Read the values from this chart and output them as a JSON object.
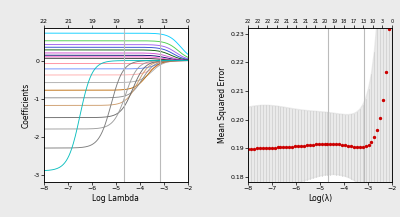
{
  "left_xlim": [
    -8,
    -2
  ],
  "left_ylim": [
    -3.2,
    0.85
  ],
  "left_xlabel": "Log Lambda",
  "left_ylabel": "Coefficients",
  "left_top_ticks": [
    "22",
    "21",
    "19",
    "19",
    "18",
    "13",
    "0"
  ],
  "left_top_tick_pos": [
    -8,
    -7,
    -6,
    -5,
    -4,
    -3,
    -2
  ],
  "left_vlines": [
    -4.65,
    -3.15
  ],
  "right_xlim": [
    -8,
    -2
  ],
  "right_ylim": [
    0.178,
    0.232
  ],
  "right_xlabel": "Log(λ)",
  "right_ylabel": "Mean Squared Error",
  "right_top_ticks": [
    "22",
    "22",
    "22",
    "22",
    "21",
    "21",
    "21",
    "21",
    "20",
    "19",
    "18",
    "17",
    "13",
    "10",
    "3",
    "0"
  ],
  "right_top_tick_pos": [
    -8,
    -7.6,
    -7.2,
    -6.8,
    -6.4,
    -6.0,
    -5.6,
    -5.2,
    -4.8,
    -4.4,
    -4.0,
    -3.6,
    -3.2,
    -2.8,
    -2.4,
    -2.0
  ],
  "right_vlines": [
    -4.65,
    -3.15
  ],
  "right_yticks": [
    0.18,
    0.19,
    0.2,
    0.21,
    0.22,
    0.23
  ],
  "bg_color": "#ebebeb",
  "plot_bg": "#ffffff",
  "vline_color": "#bbbbbb",
  "coef_colors": [
    "#00ccff",
    "#44cc44",
    "#9955ee",
    "#2244cc",
    "#005500",
    "#cc44cc",
    "#000066",
    "#ff55cc",
    "#222222",
    "#ff8899",
    "#6688ff",
    "#ffaaaa",
    "#aaaaaa",
    "#bb6600",
    "#888888",
    "#cc9966",
    "#666666",
    "#999999",
    "#777777",
    "#00bbbb"
  ],
  "coef_final_vals": [
    0.72,
    0.52,
    0.42,
    0.35,
    0.28,
    0.2,
    0.14,
    0.1,
    0.06,
    -0.08,
    -0.22,
    -0.38,
    -0.58,
    -0.78,
    -0.98,
    -1.18,
    -1.5,
    -1.8,
    -2.3,
    -2.9
  ]
}
